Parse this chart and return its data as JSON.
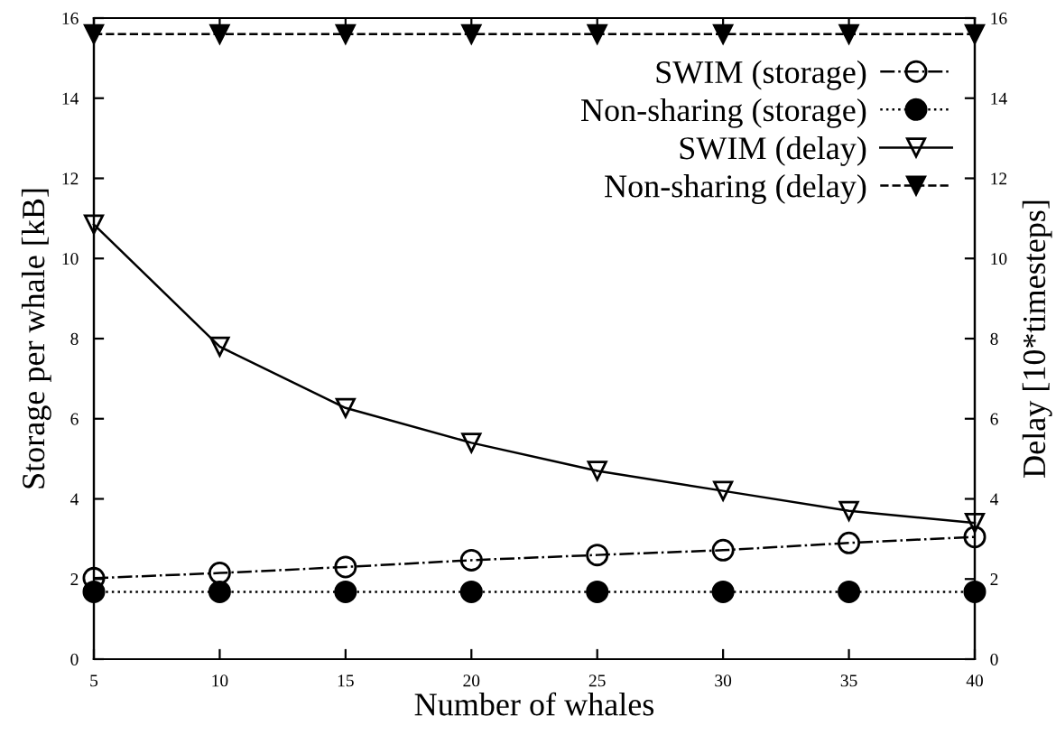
{
  "chart_data": {
    "type": "line",
    "xlabel": "Number of whales",
    "ylabel": "Storage per whale [kB]",
    "y2label": "Delay [10*timesteps]",
    "x": [
      5,
      10,
      15,
      20,
      25,
      30,
      35,
      40
    ],
    "xlim": [
      5,
      40
    ],
    "xticks": [
      5,
      10,
      15,
      20,
      25,
      30,
      35,
      40
    ],
    "ylim": [
      0,
      16
    ],
    "yticks": [
      0,
      2,
      4,
      6,
      8,
      10,
      12,
      14,
      16
    ],
    "y2lim": [
      0,
      16
    ],
    "y2ticks": [
      0,
      2,
      4,
      6,
      8,
      10,
      12,
      14,
      16
    ],
    "grid": false,
    "legend": "top right",
    "series": [
      {
        "name": "SWIM (storage)",
        "color": "#000000",
        "marker": "circle-open",
        "line_style": "dashdot",
        "values": [
          2.02,
          2.15,
          2.3,
          2.47,
          2.6,
          2.72,
          2.9,
          3.05
        ]
      },
      {
        "name": "Non-sharing (storage)",
        "color": "#000000",
        "marker": "circle",
        "line_style": "dotted",
        "values": [
          1.68,
          1.68,
          1.68,
          1.68,
          1.68,
          1.68,
          1.68,
          1.68
        ]
      },
      {
        "name": "SWIM (delay)",
        "color": "#000000",
        "marker": "triangle-down-open",
        "line_style": "solid",
        "values": [
          10.85,
          7.8,
          6.27,
          5.4,
          4.7,
          4.2,
          3.7,
          3.4
        ]
      },
      {
        "name": "Non-sharing (delay)",
        "color": "#000000",
        "marker": "triangle-down",
        "line_style": "dashed",
        "values": [
          15.6,
          15.6,
          15.6,
          15.6,
          15.6,
          15.6,
          15.6,
          15.6
        ]
      }
    ]
  }
}
